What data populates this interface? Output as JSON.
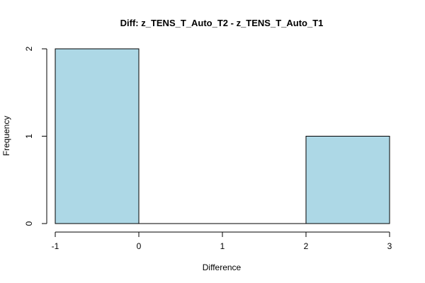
{
  "chart_data": {
    "type": "bar",
    "title": "Diff: z_TENS_T_Auto_T2 - z_TENS_T_Auto_T1",
    "xlabel": "Difference",
    "ylabel": "Frequency",
    "bins": [
      {
        "from": -1,
        "to": 0,
        "count": 2
      },
      {
        "from": 0,
        "to": 1,
        "count": 0
      },
      {
        "from": 1,
        "to": 2,
        "count": 0
      },
      {
        "from": 2,
        "to": 3,
        "count": 1
      }
    ],
    "xlim": [
      -1,
      3
    ],
    "ylim": [
      0,
      2
    ],
    "xticks": [
      -1,
      0,
      1,
      2,
      3
    ],
    "yticks": [
      0,
      1,
      2
    ],
    "grid": false,
    "legend": "none",
    "bar_color": "#ADD8E6",
    "bar_edge_color": "#000000"
  }
}
